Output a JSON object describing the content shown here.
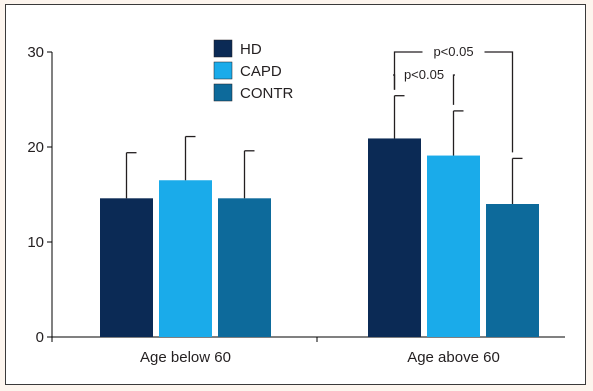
{
  "chart_data": {
    "type": "bar",
    "categories": [
      "Age below 60",
      "Age above 60"
    ],
    "series": [
      {
        "name": "HD",
        "color": "#0b2a55",
        "values": [
          14.6,
          20.9
        ],
        "errors": [
          4.8,
          4.5
        ]
      },
      {
        "name": "CAPD",
        "color": "#1aabea",
        "values": [
          16.5,
          19.1
        ],
        "errors": [
          4.6,
          4.7
        ]
      },
      {
        "name": "CONTR",
        "color": "#0d6a9b",
        "values": [
          14.6,
          14.0
        ],
        "errors": [
          5.0,
          4.8
        ]
      }
    ],
    "yticks": [
      0,
      10,
      20,
      30
    ],
    "ylim": [
      0,
      30
    ],
    "title": "",
    "xlabel": "",
    "ylabel": "",
    "legend_position": "top-center",
    "grid": false,
    "annotations": [
      {
        "text": "p<0.05",
        "category": "Age above 60",
        "from_series": "HD",
        "to_series": "CAPD"
      },
      {
        "text": "p<0.05",
        "category": "Age above 60",
        "from_series": "HD",
        "to_series": "CONTR"
      }
    ]
  }
}
